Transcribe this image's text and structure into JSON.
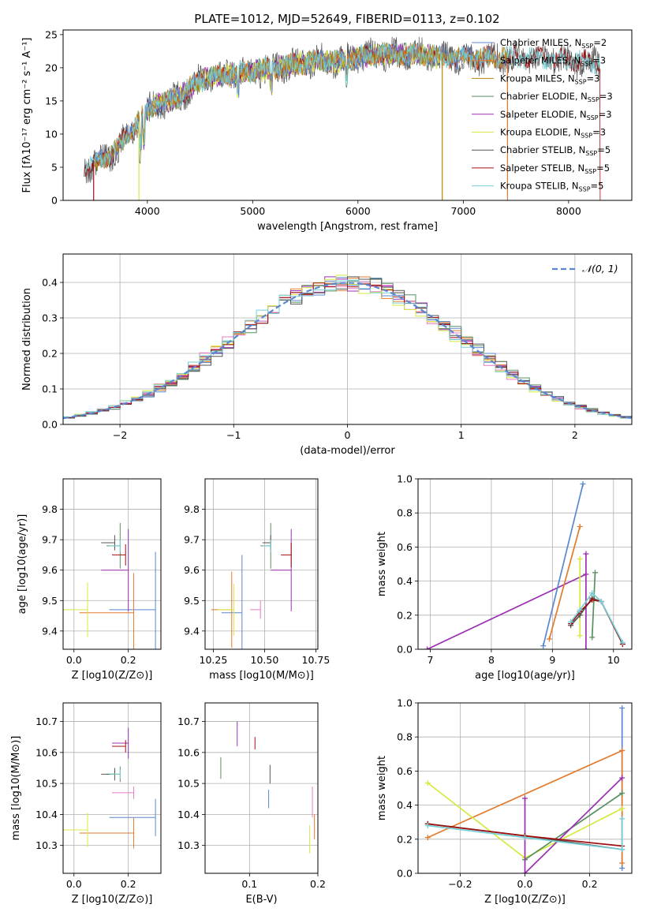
{
  "title": "PLATE=1012, MJD=52649, FIBERID=0113, z=0.102",
  "colors": {
    "Chabrier MILES": "#5b87d1",
    "Salpeter MILES": "#e37b2d",
    "Kroupa MILES": "#b8860b",
    "Chabrier ELODIE": "#5a8f62",
    "Salpeter ELODIE": "#9b30b0",
    "Kroupa ELODIE": "#d8e840",
    "Chabrier STELIB": "#555555",
    "Salpeter STELIB": "#a01010",
    "Kroupa STELIB": "#76cfd6",
    "pink": "#e87ac4",
    "gauss": "#5b87d1"
  },
  "chart_data": [
    {
      "id": "spectrum",
      "type": "line",
      "title": "PLATE=1012, MJD=52649, FIBERID=0113, z=0.102",
      "xlabel": "wavelength [Angstrom, rest frame]",
      "ylabel": "Flux [fλ10⁻¹⁷ erg cm⁻² s⁻¹ A⁻¹]",
      "xlim": [
        3200,
        8600
      ],
      "ylim": [
        0,
        25.7
      ],
      "xticks": [
        4000,
        5000,
        6000,
        7000,
        8000
      ],
      "yticks": [
        0,
        5,
        10,
        15,
        20,
        25
      ],
      "legend_position": "top-right",
      "grid": false,
      "continuum": {
        "x": [
          3400,
          3500,
          3600,
          3700,
          3800,
          3900,
          4000,
          4100,
          4200,
          4300,
          4400,
          4500,
          4600,
          4800,
          5000,
          5200,
          5400,
          5600,
          5800,
          6000,
          6200,
          6400,
          6600,
          6800,
          7000,
          7200,
          7400,
          7600,
          7800,
          8000,
          8200,
          8400
        ],
        "y": [
          4.5,
          5.5,
          6.5,
          7.5,
          9.5,
          11.5,
          13.5,
          14.5,
          15.0,
          15.5,
          17.0,
          18.0,
          18.5,
          19.0,
          19.5,
          20.0,
          20.5,
          21.0,
          21.0,
          21.5,
          22.0,
          22.0,
          22.0,
          21.5,
          21.5,
          21.5,
          21.5,
          21.5,
          21.5,
          21.0,
          21.0,
          20.5
        ]
      },
      "series": [
        {
          "name": "Chabrier MILES, N_SSP=2",
          "label_text": "Chabrier MILES, N",
          "label_sub": "SSP",
          "label_tail": "=2",
          "xmin": 3500,
          "xmax": 7420
        },
        {
          "name": "Salpeter MILES, N_SSP=3",
          "label_text": "Salpeter MILES, N",
          "label_sub": "SSP",
          "label_tail": "=3",
          "xmin": 3500,
          "xmax": 7420
        },
        {
          "name": "Kroupa MILES, N_SSP=3",
          "label_text": "Kroupa MILES, N",
          "label_sub": "SSP",
          "label_tail": "=3",
          "xmin": 3500,
          "xmax": 7420
        },
        {
          "name": "Chabrier ELODIE, N_SSP=3",
          "label_text": "Chabrier ELODIE, N",
          "label_sub": "SSP",
          "label_tail": "=3",
          "xmin": 3900,
          "xmax": 6800
        },
        {
          "name": "Salpeter ELODIE, N_SSP=3",
          "label_text": "Salpeter ELODIE, N",
          "label_sub": "SSP",
          "label_tail": "=3",
          "xmin": 3900,
          "xmax": 6800
        },
        {
          "name": "Kroupa ELODIE, N_SSP=3",
          "label_text": "Kroupa ELODIE, N",
          "label_sub": "SSP",
          "label_tail": "=3",
          "xmin": 3900,
          "xmax": 6800
        },
        {
          "name": "Chabrier STELIB, N_SSP=5",
          "label_text": "Chabrier STELIB, N",
          "label_sub": "SSP",
          "label_tail": "=5",
          "xmin": 3400,
          "xmax": 8300
        },
        {
          "name": "Salpeter STELIB, N_SSP=5",
          "label_text": "Salpeter STELIB, N",
          "label_sub": "SSP",
          "label_tail": "=5",
          "xmin": 3400,
          "xmax": 8300
        },
        {
          "name": "Kroupa STELIB, N_SSP=5",
          "label_text": "Kroupa STELIB, N",
          "label_sub": "SSP",
          "label_tail": "=5",
          "xmin": 3400,
          "xmax": 8300
        }
      ]
    },
    {
      "id": "residuals",
      "type": "line",
      "xlabel": "(data-model)/error",
      "ylabel": "Normed distribution",
      "xlim": [
        -2.5,
        2.5
      ],
      "ylim": [
        0,
        0.48
      ],
      "xticks": [
        -2,
        -1,
        0,
        1,
        2
      ],
      "xticklabels": [
        "−2",
        "−1",
        "0",
        "1",
        "2"
      ],
      "yticks": [
        0.0,
        0.1,
        0.2,
        0.3,
        0.4
      ],
      "yticklabels": [
        "0.0",
        "0.1",
        "0.2",
        "0.3",
        "0.4"
      ],
      "grid": true,
      "legend": "𝒩(0, 1)",
      "legend_position": "top-right",
      "bin_width": 0.1
    },
    {
      "id": "age-vs-Z",
      "type": "scatter",
      "xlabel": "Z [log10(Z/Z⊙)]",
      "ylabel": "age  [log10(age/yr)]",
      "xlim": [
        -0.04,
        0.32
      ],
      "ylim": [
        9.34,
        9.9
      ],
      "xticks": [
        0.0,
        0.2
      ],
      "xticklabels": [
        "0.0",
        "0.2"
      ],
      "yticks": [
        9.4,
        9.5,
        9.6,
        9.7,
        9.8
      ],
      "yticklabels": [
        "9.4",
        "9.5",
        "9.6",
        "9.7",
        "9.8"
      ],
      "grid": true,
      "points": [
        {
          "color": "Chabrier MILES",
          "x": 0.3,
          "y": 9.47,
          "xerr": 0.17,
          "yerr": 0.38
        },
        {
          "color": "Salpeter MILES",
          "x": 0.22,
          "y": 9.46,
          "xerr": 0.2,
          "yerr": 0.26
        },
        {
          "color": "Kroupa ELODIE",
          "x": 0.05,
          "y": 9.47,
          "xerr": 0.1,
          "yerr": 0.18
        },
        {
          "color": "Chabrier ELODIE",
          "x": 0.17,
          "y": 9.68,
          "xerr": 0.05,
          "yerr": 0.15
        },
        {
          "color": "Salpeter ELODIE",
          "x": 0.2,
          "y": 9.6,
          "xerr": 0.1,
          "yerr": 0.27
        },
        {
          "color": "Chabrier STELIB",
          "x": 0.15,
          "y": 9.69,
          "xerr": 0.05,
          "yerr": 0.05
        },
        {
          "color": "Salpeter STELIB",
          "x": 0.19,
          "y": 9.65,
          "xerr": 0.05,
          "yerr": 0.07
        },
        {
          "color": "Kroupa STELIB",
          "x": 0.17,
          "y": 9.68,
          "xerr": 0.04,
          "yerr": 0.04
        }
      ]
    },
    {
      "id": "age-vs-mass",
      "type": "scatter",
      "xlabel": "mass [log10(M/M⊙)]",
      "ylabel": "",
      "xlim": [
        10.21,
        10.76
      ],
      "ylim": [
        9.34,
        9.9
      ],
      "xticks": [
        10.25,
        10.5,
        10.75
      ],
      "xticklabels": [
        "10.25",
        "10.50",
        "10.75"
      ],
      "yticks": [
        9.4,
        9.5,
        9.6,
        9.7,
        9.8
      ],
      "yticklabels": [
        "9.4",
        "9.5",
        "9.6",
        "9.7",
        "9.8"
      ],
      "grid": true,
      "points": [
        {
          "color": "Chabrier MILES",
          "x": 10.39,
          "y": 9.46,
          "xerr": 0.1,
          "yerr": 0.38
        },
        {
          "color": "Salpeter MILES",
          "x": 10.34,
          "y": 9.47,
          "xerr": 0.1,
          "yerr": 0.25
        },
        {
          "color": "Kroupa ELODIE",
          "x": 10.35,
          "y": 9.47,
          "xerr": 0.08,
          "yerr": 0.17
        },
        {
          "color": "pink",
          "x": 10.48,
          "y": 9.47,
          "xerr": 0.05,
          "yerr": 0.06
        },
        {
          "color": "Chabrier ELODIE",
          "x": 10.53,
          "y": 9.68,
          "xerr": 0.05,
          "yerr": 0.15
        },
        {
          "color": "Salpeter ELODIE",
          "x": 10.63,
          "y": 9.6,
          "xerr": 0.1,
          "yerr": 0.27
        },
        {
          "color": "Chabrier STELIB",
          "x": 10.53,
          "y": 9.69,
          "xerr": 0.04,
          "yerr": 0.05
        },
        {
          "color": "Salpeter STELIB",
          "x": 10.63,
          "y": 9.65,
          "xerr": 0.05,
          "yerr": 0.08
        },
        {
          "color": "Kroupa STELIB",
          "x": 10.53,
          "y": 9.68,
          "xerr": 0.04,
          "yerr": 0.04
        }
      ]
    },
    {
      "id": "weight-vs-age",
      "type": "line",
      "xlabel": "age  [log10(age/yr)]",
      "ylabel": "mass weight",
      "xlim": [
        6.8,
        10.3
      ],
      "ylim": [
        0.0,
        1.0
      ],
      "xticks": [
        7,
        8,
        9,
        10
      ],
      "xticklabels": [
        "7",
        "8",
        "9",
        "10"
      ],
      "yticks": [
        0.0,
        0.2,
        0.4,
        0.6,
        0.8,
        1.0
      ],
      "yticklabels": [
        "0.0",
        "0.2",
        "0.4",
        "0.6",
        "0.8",
        "1.0"
      ],
      "grid": true,
      "series": [
        {
          "color": "Salpeter ELODIE",
          "x": [
            6.95,
            9.55
          ],
          "y": [
            0.0,
            0.44
          ]
        },
        {
          "color": "Chabrier MILES",
          "x": [
            8.85,
            9.5
          ],
          "y": [
            0.02,
            0.97
          ]
        },
        {
          "color": "Salpeter MILES",
          "x": [
            8.95,
            9.45
          ],
          "y": [
            0.06,
            0.72
          ]
        },
        {
          "color": "Salpeter ELODIE",
          "x": [
            9.55,
            9.55
          ],
          "y": [
            0.0,
            0.56
          ]
        },
        {
          "color": "Kroupa ELODIE",
          "x": [
            9.45,
            9.45
          ],
          "y": [
            0.08,
            0.53
          ]
        },
        {
          "color": "Chabrier ELODIE",
          "x": [
            9.65,
            9.7
          ],
          "y": [
            0.07,
            0.45
          ]
        },
        {
          "color": "Chabrier STELIB",
          "x": [
            9.3,
            9.45,
            9.65,
            9.8,
            10.15
          ],
          "y": [
            0.14,
            0.2,
            0.3,
            0.28,
            0.03
          ]
        },
        {
          "color": "Salpeter STELIB",
          "x": [
            9.3,
            9.45,
            9.65,
            9.8,
            10.15
          ],
          "y": [
            0.15,
            0.22,
            0.29,
            0.28,
            0.03
          ]
        },
        {
          "color": "Kroupa STELIB",
          "x": [
            9.3,
            9.45,
            9.65,
            9.8,
            10.15
          ],
          "y": [
            0.16,
            0.23,
            0.33,
            0.28,
            0.04
          ]
        }
      ]
    },
    {
      "id": "mass-vs-Z",
      "type": "scatter",
      "xlabel": "Z [log10(Z/Z⊙)]",
      "ylabel": "mass [log10(M/M⊙)]",
      "xlim": [
        -0.04,
        0.32
      ],
      "ylim": [
        10.21,
        10.76
      ],
      "xticks": [
        0.0,
        0.2
      ],
      "xticklabels": [
        "0.0",
        "0.2"
      ],
      "yticks": [
        10.3,
        10.4,
        10.5,
        10.6,
        10.7
      ],
      "yticklabels": [
        "10.3",
        "10.4",
        "10.5",
        "10.6",
        "10.7"
      ],
      "grid": true,
      "points": [
        {
          "color": "Chabrier MILES",
          "x": 0.3,
          "y": 10.39,
          "xerr": 0.17,
          "yerr": 0.12
        },
        {
          "color": "Salpeter MILES",
          "x": 0.22,
          "y": 10.34,
          "xerr": 0.2,
          "yerr": 0.1
        },
        {
          "color": "Kroupa ELODIE",
          "x": 0.05,
          "y": 10.35,
          "xerr": 0.1,
          "yerr": 0.11
        },
        {
          "color": "pink",
          "x": 0.22,
          "y": 10.47,
          "xerr": 0.08,
          "yerr": 0.04
        },
        {
          "color": "Chabrier ELODIE",
          "x": 0.17,
          "y": 10.53,
          "xerr": 0.05,
          "yerr": 0.05
        },
        {
          "color": "Salpeter ELODIE",
          "x": 0.2,
          "y": 10.63,
          "xerr": 0.06,
          "yerr": 0.1
        },
        {
          "color": "Chabrier STELIB",
          "x": 0.15,
          "y": 10.53,
          "xerr": 0.05,
          "yerr": 0.04
        },
        {
          "color": "Salpeter STELIB",
          "x": 0.19,
          "y": 10.62,
          "xerr": 0.05,
          "yerr": 0.04
        },
        {
          "color": "Kroupa STELIB",
          "x": 0.17,
          "y": 10.53,
          "xerr": 0.04,
          "yerr": 0.03
        }
      ]
    },
    {
      "id": "mass-vs-EBV",
      "type": "scatter",
      "xlabel": "E(B-V)",
      "ylabel": "",
      "xlim": [
        0.035,
        0.2
      ],
      "ylim": [
        10.21,
        10.76
      ],
      "xticks": [
        0.1,
        0.2
      ],
      "xticklabels": [
        "0.1",
        "0.2"
      ],
      "yticks": [
        10.3,
        10.4,
        10.5,
        10.6,
        10.7
      ],
      "yticklabels": [
        "10.3",
        "10.4",
        "10.5",
        "10.6",
        "10.7"
      ],
      "grid": true,
      "points": [
        {
          "color": "Chabrier ELODIE",
          "x": 0.058,
          "y": 10.55,
          "xerr": 0.0,
          "yerr": 0.07
        },
        {
          "color": "Salpeter ELODIE",
          "x": 0.082,
          "y": 10.66,
          "xerr": 0.0,
          "yerr": 0.08
        },
        {
          "color": "Salpeter STELIB",
          "x": 0.108,
          "y": 10.63,
          "xerr": 0.0,
          "yerr": 0.04
        },
        {
          "color": "Chabrier STELIB",
          "x": 0.13,
          "y": 10.53,
          "xerr": 0.0,
          "yerr": 0.06
        },
        {
          "color": "Chabrier MILES",
          "x": 0.128,
          "y": 10.45,
          "xerr": 0.0,
          "yerr": 0.06
        },
        {
          "color": "Kroupa ELODIE",
          "x": 0.188,
          "y": 10.32,
          "xerr": 0.0,
          "yerr": 0.09
        },
        {
          "color": "pink",
          "x": 0.192,
          "y": 10.44,
          "xerr": 0.0,
          "yerr": 0.1
        },
        {
          "color": "Salpeter MILES",
          "x": 0.195,
          "y": 10.36,
          "xerr": 0.0,
          "yerr": 0.08
        }
      ]
    },
    {
      "id": "weight-vs-Z",
      "type": "line",
      "xlabel": "Z [log10(Z/Z⊙)]",
      "ylabel": "mass weight",
      "xlim": [
        -0.33,
        0.33
      ],
      "ylim": [
        0.0,
        1.0
      ],
      "xticks": [
        -0.2,
        0.0,
        0.2
      ],
      "xticklabels": [
        "−0.2",
        "0.0",
        "0.2"
      ],
      "yticks": [
        0.0,
        0.2,
        0.4,
        0.6,
        0.8,
        1.0
      ],
      "yticklabels": [
        "0.0",
        "0.2",
        "0.4",
        "0.6",
        "0.8",
        "1.0"
      ],
      "grid": true,
      "series": [
        {
          "color": "Salpeter MILES",
          "x": [
            -0.3,
            0.3
          ],
          "y": [
            0.21,
            0.72
          ]
        },
        {
          "color": "Chabrier MILES",
          "x": [
            0.3,
            0.3
          ],
          "y": [
            0.03,
            0.97
          ]
        },
        {
          "color": "Salpeter MILES",
          "x": [
            0.3,
            0.3
          ],
          "y": [
            0.06,
            0.72
          ]
        },
        {
          "color": "Kroupa ELODIE",
          "x": [
            -0.3,
            0.0,
            0.3
          ],
          "y": [
            0.53,
            0.09,
            0.38
          ]
        },
        {
          "color": "Chabrier ELODIE",
          "x": [
            0.0,
            0.3
          ],
          "y": [
            0.08,
            0.47
          ]
        },
        {
          "color": "Salpeter ELODIE",
          "x": [
            0.0,
            0.0,
            0.3
          ],
          "y": [
            0.44,
            0.0,
            0.56
          ]
        },
        {
          "color": "Chabrier STELIB",
          "x": [
            -0.3,
            0.0,
            0.3
          ],
          "y": [
            0.29,
            0.22,
            0.14
          ]
        },
        {
          "color": "Salpeter STELIB",
          "x": [
            -0.3,
            0.0,
            0.3
          ],
          "y": [
            0.29,
            0.22,
            0.16
          ]
        },
        {
          "color": "Kroupa STELIB",
          "x": [
            -0.3,
            0.0,
            0.3,
            0.3
          ],
          "y": [
            0.28,
            0.21,
            0.14,
            0.32
          ]
        }
      ]
    }
  ]
}
